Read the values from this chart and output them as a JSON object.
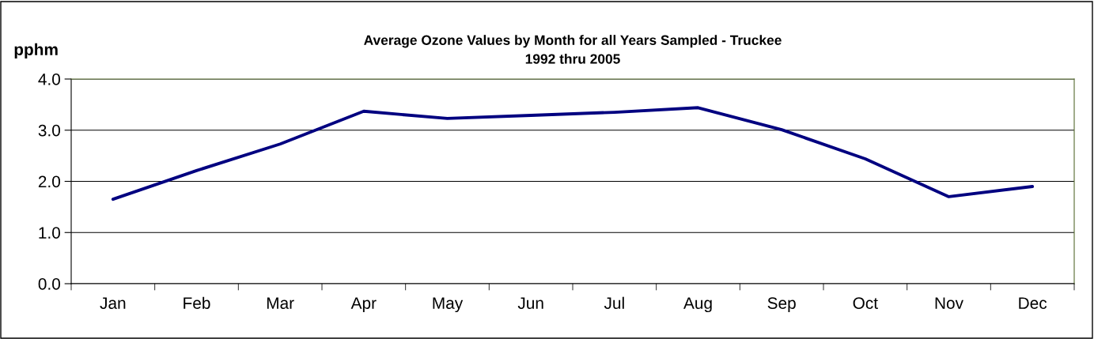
{
  "chart_data": {
    "type": "line",
    "title": "Average Ozone Values by Month for all Years Sampled - Truckee\n1992 thru 2005",
    "ylabel": "pphm",
    "categories": [
      "Jan",
      "Feb",
      "Mar",
      "Apr",
      "May",
      "Jun",
      "Jul",
      "Aug",
      "Sep",
      "Oct",
      "Nov",
      "Dec"
    ],
    "series": [
      {
        "color": "#000080",
        "values": [
          1.65,
          2.21,
          2.73,
          3.37,
          3.23,
          3.29,
          3.35,
          3.44,
          3.01,
          2.44,
          1.7,
          1.9
        ]
      }
    ],
    "ylim": [
      0,
      4
    ],
    "yticks": [
      {
        "value": 0,
        "label": "0.0"
      },
      {
        "value": 1,
        "label": "1.0"
      },
      {
        "value": 2,
        "label": "2.0"
      },
      {
        "value": 3,
        "label": "3.0"
      },
      {
        "value": 4,
        "label": "4.0"
      }
    ],
    "grid": "y",
    "legend": false,
    "marker": "none",
    "line_style": "solid"
  }
}
